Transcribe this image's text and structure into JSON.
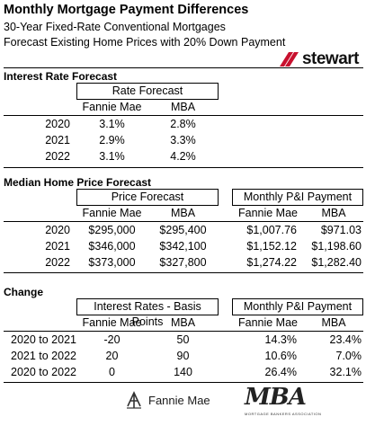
{
  "header": {
    "title": "Monthly Mortgage Payment Differences",
    "subtitle1": "30-Year Fixed-Rate Conventional Mortgages",
    "subtitle2": "Forecast Existing Home Prices with 20% Down Payment",
    "logo_text": "stewart"
  },
  "rate": {
    "section": "Interest Rate Forecast",
    "group": "Rate Forecast",
    "col1": "Fannie Mae",
    "col2": "MBA",
    "rows": [
      {
        "year": "2020",
        "fm": "3.1%",
        "mba": "2.8%"
      },
      {
        "year": "2021",
        "fm": "2.9%",
        "mba": "3.3%"
      },
      {
        "year": "2022",
        "fm": "3.1%",
        "mba": "4.2%"
      }
    ]
  },
  "price": {
    "section": "Median Home Price Forecast",
    "group1": "Price Forecast",
    "group2": "Monthly P&I Payment",
    "col1": "Fannie Mae",
    "col2": "MBA",
    "col3": "Fannie Mae",
    "col4": "MBA",
    "rows": [
      {
        "year": "2020",
        "fm": "$295,000",
        "mba": "$295,400",
        "fm_pay": "$1,007.76",
        "mba_pay": "$971.03"
      },
      {
        "year": "2021",
        "fm": "$346,000",
        "mba": "$342,100",
        "fm_pay": "$1,152.12",
        "mba_pay": "$1,198.60"
      },
      {
        "year": "2022",
        "fm": "$373,000",
        "mba": "$327,800",
        "fm_pay": "$1,274.22",
        "mba_pay": "$1,282.40"
      }
    ]
  },
  "change": {
    "section": "Change",
    "group1": "Interest Rates - Basis Points",
    "group2": "Monthly P&I Payment",
    "col1": "Fannie Mae",
    "col2": "MBA",
    "col3": "Fannie Mae",
    "col4": "MBA",
    "rows": [
      {
        "period": "2020 to 2021",
        "fm": "-20",
        "mba": "50",
        "fm_pay": "14.3%",
        "mba_pay": "23.4%"
      },
      {
        "period": "2021 to 2022",
        "fm": "20",
        "mba": "90",
        "fm_pay": "10.6%",
        "mba_pay": "7.0%"
      },
      {
        "period": "2020 to 2022",
        "fm": "0",
        "mba": "140",
        "fm_pay": "26.4%",
        "mba_pay": "32.1%"
      }
    ]
  },
  "footer": {
    "fannie_logo": "Fannie Mae",
    "mba_logo": "MBA",
    "mba_sub": "MORTGAGE BANKERS ASSOCIATION"
  },
  "colors": {
    "stewart_mark": "#c8102e",
    "fannie_mark": "#333333"
  }
}
